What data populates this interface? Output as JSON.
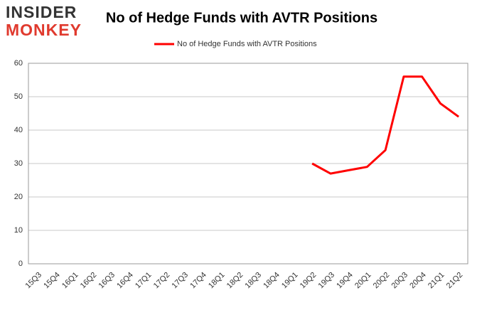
{
  "logo": {
    "line1": "INSIDER",
    "line2": "MONKEY"
  },
  "chart_data": {
    "type": "line",
    "title": "No of Hedge Funds with AVTR Positions",
    "categories": [
      "15Q3",
      "15Q4",
      "16Q1",
      "16Q2",
      "16Q3",
      "16Q4",
      "17Q1",
      "17Q2",
      "17Q3",
      "17Q4",
      "18Q1",
      "18Q2",
      "18Q3",
      "18Q4",
      "19Q1",
      "19Q2",
      "19Q3",
      "19Q4",
      "20Q1",
      "20Q2",
      "20Q3",
      "20Q4",
      "21Q1",
      "21Q2"
    ],
    "series": [
      {
        "name": "No of Hedge Funds with AVTR Positions",
        "color": "#ff0000",
        "values": [
          null,
          null,
          null,
          null,
          null,
          null,
          null,
          null,
          null,
          null,
          null,
          null,
          null,
          null,
          null,
          30,
          27,
          28,
          29,
          34,
          56,
          56,
          48,
          44
        ]
      }
    ],
    "ylim": [
      0,
      60
    ],
    "yticks": [
      0,
      10,
      20,
      30,
      40,
      50,
      60
    ],
    "grid": true,
    "legend": "top"
  }
}
